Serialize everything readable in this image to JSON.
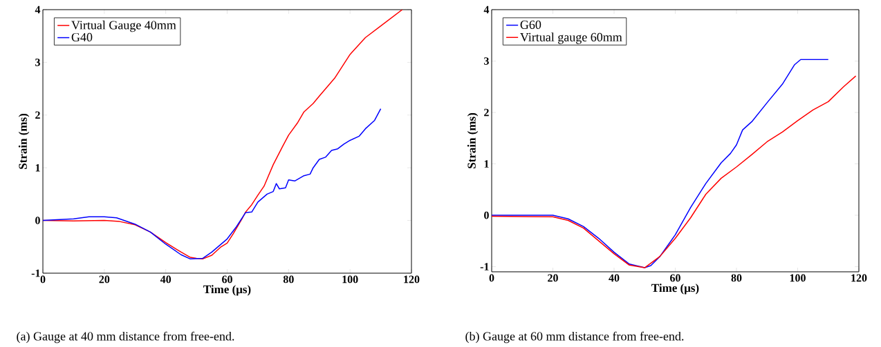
{
  "chart_data": [
    {
      "type": "line",
      "xlabel": "Time (μs)",
      "ylabel": "Strain (ms)",
      "xlim": [
        0,
        120
      ],
      "ylim": [
        -1,
        4
      ],
      "xticks": [
        0,
        20,
        40,
        60,
        80,
        100,
        120
      ],
      "yticks": [
        -1,
        0,
        1,
        2,
        3,
        4
      ],
      "legend": "top left",
      "grid": false,
      "annotations": [
        "(a) Gauge at 40 mm distance from free-end."
      ],
      "series": [
        {
          "name": "Virtual Gauge 40mm",
          "color": "#ff0000",
          "x": [
            0,
            10,
            20,
            25,
            30,
            35,
            40,
            45,
            48,
            50,
            52,
            55,
            58,
            60,
            62,
            65,
            66,
            68,
            70,
            72,
            75,
            78,
            80,
            83,
            85,
            88,
            90,
            95,
            100,
            105,
            110,
            117
          ],
          "values": [
            0,
            -0.01,
            0,
            -0.02,
            -0.08,
            -0.22,
            -0.42,
            -0.6,
            -0.7,
            -0.72,
            -0.73,
            -0.66,
            -0.5,
            -0.43,
            -0.25,
            0.05,
            0.16,
            0.3,
            0.48,
            0.65,
            1.06,
            1.4,
            1.62,
            1.86,
            2.06,
            2.22,
            2.36,
            2.7,
            3.15,
            3.47,
            3.69,
            4.0
          ]
        },
        {
          "name": "G40",
          "color": "#0000ff",
          "x": [
            0,
            10,
            15,
            20,
            24,
            30,
            35,
            40,
            45,
            48,
            52,
            55,
            60,
            63,
            66,
            68,
            70,
            73,
            75,
            76,
            77,
            79,
            80,
            82,
            85,
            87,
            88,
            90,
            92,
            94,
            96,
            98,
            100,
            103,
            105,
            108,
            110
          ],
          "values": [
            0,
            0.03,
            0.07,
            0.07,
            0.05,
            -0.07,
            -0.22,
            -0.45,
            -0.65,
            -0.73,
            -0.72,
            -0.6,
            -0.35,
            -0.12,
            0.15,
            0.16,
            0.35,
            0.5,
            0.55,
            0.7,
            0.6,
            0.62,
            0.77,
            0.75,
            0.85,
            0.88,
            1.0,
            1.16,
            1.2,
            1.33,
            1.36,
            1.45,
            1.52,
            1.6,
            1.74,
            1.9,
            2.12
          ]
        }
      ]
    },
    {
      "type": "line",
      "xlabel": "Time (μs)",
      "ylabel": "Strain (ms)",
      "xlim": [
        0,
        120
      ],
      "ylim": [
        -1.1,
        4
      ],
      "xticks": [
        0,
        20,
        40,
        60,
        80,
        100,
        120
      ],
      "yticks": [
        -1,
        0,
        1,
        2,
        3,
        4
      ],
      "legend": "top left",
      "grid": false,
      "annotations": [
        "(b) Gauge at 60 mm distance from free-end."
      ],
      "series": [
        {
          "name": "G60",
          "color": "#0000ff",
          "x": [
            0,
            20,
            25,
            30,
            35,
            40,
            45,
            50,
            52,
            55,
            58,
            60,
            65,
            70,
            75,
            78,
            80,
            82,
            85,
            90,
            95,
            99,
            101,
            110
          ],
          "values": [
            0,
            0,
            -0.07,
            -0.22,
            -0.45,
            -0.72,
            -0.95,
            -1.02,
            -0.98,
            -0.8,
            -0.55,
            -0.38,
            0.15,
            0.62,
            1.02,
            1.2,
            1.37,
            1.66,
            1.82,
            2.19,
            2.55,
            2.93,
            3.03,
            3.03
          ]
        },
        {
          "name": "Virtual gauge 60mm",
          "color": "#ff0000",
          "x": [
            0,
            20,
            25,
            30,
            35,
            40,
            45,
            50,
            55,
            60,
            65,
            70,
            75,
            80,
            85,
            90,
            95,
            100,
            105,
            110,
            115,
            119
          ],
          "values": [
            -0.02,
            -0.03,
            -0.1,
            -0.25,
            -0.5,
            -0.75,
            -0.97,
            -1.02,
            -0.8,
            -0.45,
            -0.05,
            0.41,
            0.72,
            0.94,
            1.18,
            1.43,
            1.62,
            1.84,
            2.05,
            2.21,
            2.5,
            2.71
          ]
        }
      ]
    }
  ]
}
